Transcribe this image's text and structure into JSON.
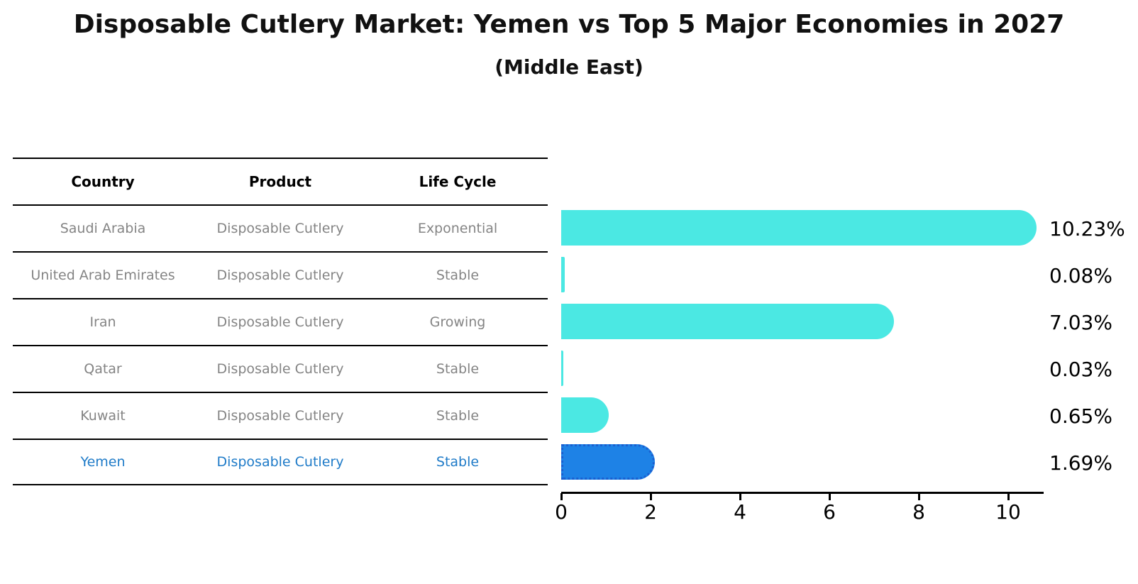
{
  "title": "Disposable Cutlery Market: Yemen vs Top 5 Major Economies in 2027",
  "subtitle": "(Middle East)",
  "table": {
    "columns": [
      "Country",
      "Product",
      "Life Cycle"
    ],
    "rows": [
      {
        "country": "Saudi Arabia",
        "product": "Disposable Cutlery",
        "life_cycle": "Exponential",
        "highlight": false
      },
      {
        "country": "United Arab Emirates",
        "product": "Disposable Cutlery",
        "life_cycle": "Stable",
        "highlight": false
      },
      {
        "country": "Iran",
        "product": "Disposable Cutlery",
        "life_cycle": "Growing",
        "highlight": false
      },
      {
        "country": "Qatar",
        "product": "Disposable Cutlery",
        "life_cycle": "Stable",
        "highlight": false
      },
      {
        "country": "Kuwait",
        "product": "Disposable Cutlery",
        "life_cycle": "Stable",
        "highlight": false
      },
      {
        "country": "Yemen",
        "product": "Disposable Cutlery",
        "life_cycle": "Stable",
        "highlight": true
      }
    ]
  },
  "chart_data": {
    "type": "bar",
    "orientation": "horizontal",
    "title": "Disposable Cutlery Market: Yemen vs Top 5 Major Economies in 2027",
    "subtitle": "(Middle East)",
    "categories": [
      "Saudi Arabia",
      "United Arab Emirates",
      "Iran",
      "Qatar",
      "Kuwait",
      "Yemen"
    ],
    "values": [
      10.23,
      0.08,
      7.03,
      0.03,
      0.65,
      1.69
    ],
    "value_labels": [
      "10.23%",
      "0.08%",
      "7.03%",
      "0.03%",
      "0.65%",
      "1.69%"
    ],
    "highlight_index": 5,
    "x_ticks": [
      0,
      2,
      4,
      6,
      8,
      10
    ],
    "xlim": [
      0,
      10.8
    ],
    "grid": false,
    "legend": false,
    "colors": {
      "bar": "#4BE8E3",
      "highlight_bar": "#1E82E6",
      "highlight_border": "#1A5FD0",
      "highlight_text": "#1F7BC8",
      "table_text": "#848484",
      "header_text": "#000000",
      "axis": "#000000"
    }
  }
}
